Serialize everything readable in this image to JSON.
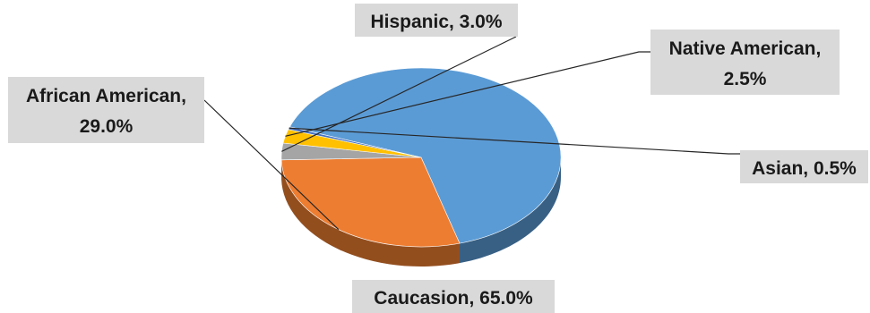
{
  "chart_data": {
    "type": "pie",
    "style": "3d",
    "slices": [
      {
        "name": "Caucasion",
        "value": 65.0,
        "label": "Caucasion, 65.0%",
        "color": "#5b9bd5"
      },
      {
        "name": "African American",
        "value": 29.0,
        "label": "African American, 29.0%",
        "color": "#ed7d31"
      },
      {
        "name": "Hispanic",
        "value": 3.0,
        "label": "Hispanic, 3.0%",
        "color": "#a5a5a5"
      },
      {
        "name": "Native American",
        "value": 2.5,
        "label": "Native American, 2.5%",
        "color": "#ffc000"
      },
      {
        "name": "Asian",
        "value": 0.5,
        "label": "Asian, 0.5%",
        "color": "#4472c4"
      }
    ]
  }
}
